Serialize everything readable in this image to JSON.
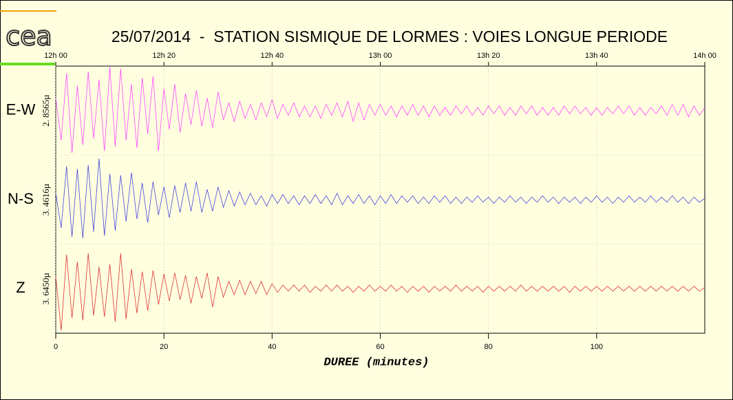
{
  "chart_data": {
    "type": "line",
    "logo": "cea",
    "title": "25/07/2014  -  STATION SISMIQUE DE LORMES : VOIES LONGUE PERIODE",
    "xlabel": "DUREE (minutes)",
    "xlim": [
      0,
      120
    ],
    "xticks": [
      0,
      20,
      40,
      60,
      80,
      100
    ],
    "x2ticks": [
      {
        "value": 0,
        "label": "12h 00"
      },
      {
        "value": 20,
        "label": "12h 20"
      },
      {
        "value": 40,
        "label": "12h 40"
      },
      {
        "value": 60,
        "label": "13h 00"
      },
      {
        "value": 80,
        "label": "13h 20"
      },
      {
        "value": 100,
        "label": "13h 40"
      },
      {
        "value": 120,
        "label": "14h 00"
      }
    ],
    "grid": true,
    "x": [
      0,
      1,
      2,
      3,
      4,
      5,
      6,
      7,
      8,
      9,
      10,
      11,
      12,
      13,
      14,
      15,
      16,
      17,
      18,
      19,
      20,
      21,
      22,
      23,
      24,
      25,
      26,
      27,
      28,
      29,
      30,
      31,
      32,
      33,
      34,
      35,
      36,
      37,
      38,
      39,
      40,
      41,
      42,
      43,
      44,
      45,
      46,
      47,
      48,
      49,
      50,
      51,
      52,
      53,
      54,
      55,
      56,
      57,
      58,
      59,
      60,
      61,
      62,
      63,
      64,
      65,
      66,
      67,
      68,
      69,
      70,
      71,
      72,
      73,
      74,
      75,
      76,
      77,
      78,
      79,
      80,
      81,
      82,
      83,
      84,
      85,
      86,
      87,
      88,
      89,
      90,
      91,
      92,
      93,
      94,
      95,
      96,
      97,
      98,
      99,
      100,
      101,
      102,
      103,
      104,
      105,
      106,
      107,
      108,
      109,
      110,
      111,
      112,
      113,
      114,
      115,
      116,
      117,
      118,
      119,
      120
    ],
    "series": [
      {
        "name": "E-W",
        "scale_label": "2. 8565µ",
        "color": "#ff44ff",
        "ylim": [
          -2.8565,
          2.8565
        ],
        "values": [
          0.8,
          -1.9,
          2.4,
          -2.7,
          1.6,
          -2.2,
          2.5,
          -1.8,
          2.0,
          -2.6,
          2.8,
          -2.3,
          2.7,
          -1.9,
          1.7,
          -2.4,
          2.1,
          -1.5,
          2.2,
          -2.6,
          1.4,
          -1.2,
          1.7,
          -1.4,
          1.1,
          -0.9,
          1.3,
          -1.0,
          0.8,
          -1.1,
          1.2,
          -0.6,
          0.5,
          -0.7,
          0.6,
          -0.5,
          0.4,
          -0.6,
          0.5,
          -0.4,
          0.7,
          -0.5,
          0.4,
          -0.3,
          0.5,
          -0.4,
          0.3,
          -0.4,
          0.3,
          -0.5,
          0.4,
          -0.3,
          0.5,
          -0.4,
          0.6,
          -0.7,
          0.5,
          -0.6,
          0.4,
          -0.3,
          0.4,
          -0.3,
          0.3,
          -0.4,
          0.3,
          -0.3,
          0.4,
          -0.3,
          0.3,
          -0.4,
          0.3,
          -0.3,
          0.2,
          -0.3,
          0.3,
          -0.2,
          0.3,
          -0.3,
          0.2,
          -0.3,
          0.3,
          -0.2,
          0.3,
          -0.3,
          0.2,
          -0.3,
          0.3,
          -0.2,
          0.3,
          -0.3,
          0.2,
          -0.3,
          0.2,
          -0.3,
          0.3,
          -0.2,
          0.3,
          -0.2,
          0.2,
          -0.3,
          0.2,
          -0.3,
          0.2,
          -0.2,
          0.3,
          -0.2,
          0.3,
          -0.3,
          0.2,
          -0.3,
          0.2,
          -0.2,
          0.3,
          -0.3,
          0.4,
          -0.3,
          0.4,
          -0.4,
          0.3,
          -0.3,
          0.2
        ]
      },
      {
        "name": "N-S",
        "scale_label": "3. 4616µ",
        "color": "#4444dd",
        "ylim": [
          -3.4616,
          3.4616
        ],
        "values": [
          0.5,
          -2.2,
          2.6,
          -2.9,
          2.4,
          -3.0,
          2.7,
          -2.5,
          3.2,
          -2.8,
          2.0,
          -2.4,
          1.9,
          -1.7,
          2.1,
          -1.5,
          1.3,
          -1.8,
          1.4,
          -1.2,
          1.0,
          -1.4,
          1.1,
          -1.0,
          1.3,
          -0.9,
          1.4,
          -1.0,
          0.8,
          -0.9,
          1.0,
          -0.6,
          0.7,
          -0.5,
          0.6,
          -0.4,
          0.5,
          -0.4,
          0.3,
          -0.5,
          0.4,
          -0.3,
          0.4,
          -0.3,
          0.3,
          -0.4,
          0.3,
          -0.3,
          0.4,
          -0.3,
          0.3,
          -0.4,
          0.5,
          -0.4,
          0.3,
          -0.3,
          0.4,
          -0.3,
          0.3,
          -0.4,
          0.3,
          -0.3,
          0.4,
          -0.3,
          0.3,
          -0.2,
          0.3,
          -0.3,
          0.2,
          -0.3,
          0.3,
          -0.2,
          0.3,
          -0.3,
          0.2,
          -0.3,
          0.2,
          -0.2,
          0.3,
          -0.2,
          0.2,
          -0.3,
          0.2,
          -0.2,
          0.3,
          -0.2,
          0.2,
          -0.3,
          0.2,
          -0.2,
          0.3,
          -0.2,
          0.2,
          -0.3,
          0.2,
          -0.2,
          0.2,
          -0.3,
          0.2,
          -0.2,
          0.3,
          -0.2,
          0.2,
          -0.3,
          0.2,
          -0.2,
          0.3,
          -0.2,
          0.2,
          -0.2,
          0.3,
          -0.2,
          0.2,
          -0.2,
          0.3,
          -0.2,
          0.2,
          -0.3,
          0.2,
          -0.2,
          0.1
        ]
      },
      {
        "name": "Z",
        "scale_label": "3. 6450µ",
        "color": "#e03030",
        "ylim": [
          -3.645,
          3.645
        ],
        "values": [
          1.0,
          -3.4,
          2.8,
          -2.4,
          2.2,
          -2.6,
          2.9,
          -2.2,
          1.8,
          -2.3,
          2.0,
          -2.7,
          2.9,
          -2.5,
          1.6,
          -2.0,
          1.4,
          -1.8,
          1.5,
          -1.3,
          1.2,
          -1.0,
          1.3,
          -0.9,
          1.1,
          -1.2,
          1.0,
          -0.8,
          1.3,
          -1.5,
          1.0,
          -0.7,
          0.6,
          -0.5,
          0.7,
          -0.5,
          0.6,
          -0.4,
          0.6,
          -0.5,
          0.4,
          -0.3,
          0.3,
          -0.2,
          0.3,
          -0.2,
          0.3,
          -0.3,
          0.2,
          -0.2,
          0.3,
          -0.2,
          0.3,
          -0.2,
          0.2,
          -0.3,
          0.2,
          -0.2,
          0.3,
          -0.2,
          0.2,
          -0.2,
          0.3,
          -0.2,
          0.2,
          -0.3,
          0.2,
          -0.2,
          0.2,
          -0.3,
          0.2,
          -0.2,
          0.2,
          -0.2,
          0.3,
          -0.2,
          0.2,
          -0.2,
          0.2,
          -0.3,
          0.2,
          -0.2,
          0.2,
          -0.2,
          0.2,
          -0.2,
          0.3,
          -0.2,
          0.2,
          -0.2,
          0.2,
          -0.2,
          0.2,
          -0.2,
          0.2,
          -0.3,
          0.2,
          -0.2,
          0.2,
          -0.2,
          0.2,
          -0.2,
          0.2,
          -0.2,
          0.2,
          -0.2,
          0.2,
          -0.2,
          0.2,
          -0.2,
          0.2,
          -0.2,
          0.2,
          -0.2,
          0.2,
          -0.2,
          0.2,
          -0.2,
          0.2,
          -0.2,
          0.1
        ]
      }
    ]
  }
}
